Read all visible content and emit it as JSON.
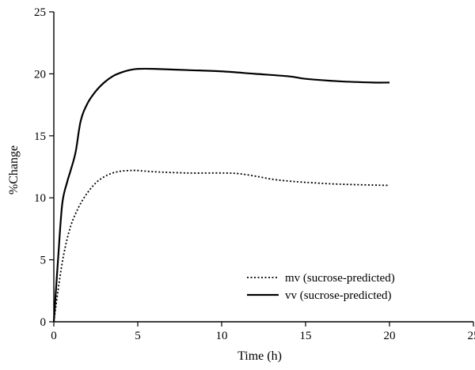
{
  "chart_data": {
    "type": "line",
    "xlabel": "Time (h)",
    "ylabel": "%Change",
    "xlim": [
      0,
      25
    ],
    "ylim": [
      0,
      25
    ],
    "xticks": [
      0,
      5,
      10,
      15,
      20,
      25
    ],
    "yticks": [
      0,
      5,
      10,
      15,
      20,
      25
    ],
    "grid": false,
    "legend_position": "bottom-right",
    "series": [
      {
        "name": "mv (sucrose-predicted)",
        "style": "dotted",
        "color": "#000000",
        "x": [
          0,
          0.3,
          0.6,
          1.0,
          1.5,
          2.0,
          2.5,
          3.0,
          3.5,
          4.0,
          4.5,
          5.0,
          6.0,
          8.0,
          10.0,
          11.0,
          12.0,
          13.0,
          14.0,
          15.0,
          17.0,
          20.0
        ],
        "y": [
          0,
          3.0,
          5.5,
          7.7,
          9.3,
          10.4,
          11.2,
          11.7,
          12.0,
          12.15,
          12.2,
          12.2,
          12.1,
          12.0,
          12.0,
          11.95,
          11.75,
          11.5,
          11.35,
          11.25,
          11.1,
          11.0
        ]
      },
      {
        "name": "vv (sucrose-predicted)",
        "style": "solid",
        "color": "#000000",
        "x": [
          0,
          0.25,
          0.5,
          0.8,
          1.0,
          1.3,
          1.6,
          2.0,
          2.5,
          3.0,
          3.5,
          4.0,
          4.5,
          5.0,
          6.0,
          8.0,
          10.0,
          12.0,
          14.0,
          15.0,
          17.0,
          19.0,
          20.0
        ],
        "y": [
          0,
          5.0,
          9.5,
          11.3,
          12.2,
          13.7,
          16.2,
          17.6,
          18.6,
          19.3,
          19.8,
          20.1,
          20.3,
          20.4,
          20.4,
          20.3,
          20.2,
          20.0,
          19.8,
          19.6,
          19.4,
          19.3,
          19.3
        ]
      }
    ]
  }
}
